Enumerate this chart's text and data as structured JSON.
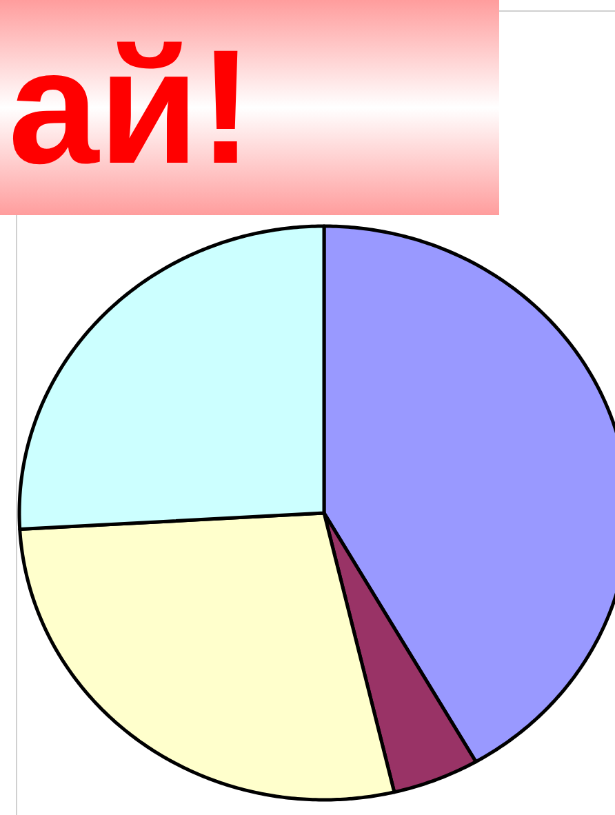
{
  "chart_data": {
    "type": "pie",
    "title": "ай!",
    "categories": [
      null,
      null,
      null,
      null
    ],
    "values": [
      41.7,
      4.6,
      27.8,
      25.9
    ],
    "colors": [
      "#9999ff",
      "#993366",
      "#ffffcc",
      "#ccffff"
    ]
  }
}
